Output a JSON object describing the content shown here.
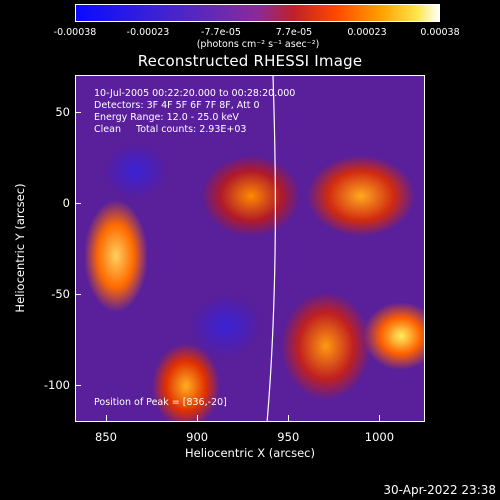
{
  "colorbar": {
    "ticks": [
      "-0.00038",
      "-0.00023",
      "-7.7e-05",
      "7.7e-05",
      "0.00023",
      "0.00038"
    ],
    "unit_label": "(photons cm⁻² s⁻¹ asec⁻²)",
    "range": [
      -0.00038,
      0.00038
    ]
  },
  "chart_data": {
    "type": "heatmap",
    "title": "Reconstructed RHESSI Image",
    "xlabel": "Heliocentric X (arcsec)",
    "ylabel": "Heliocentric Y (arcsec)",
    "xlim": [
      833,
      1025
    ],
    "ylim": [
      -120,
      70
    ],
    "x_ticks": [
      "850",
      "900",
      "950",
      "1000"
    ],
    "y_ticks": [
      "50",
      "0",
      "-50",
      "-100"
    ],
    "annotations": [
      "10-Jul-2005 00:22:20.000 to 00:28:20.000",
      "Detectors: 3F 4F 5F 6F 7F 8F, Att 0",
      "Energy Range: 12.0 - 25.0 keV",
      "Clean     Total counts: 2.93E+03",
      "Position of Peak = [836,-20]"
    ],
    "limb_line": true
  },
  "footer": {
    "timestamp": "30-Apr-2022 23:38"
  }
}
